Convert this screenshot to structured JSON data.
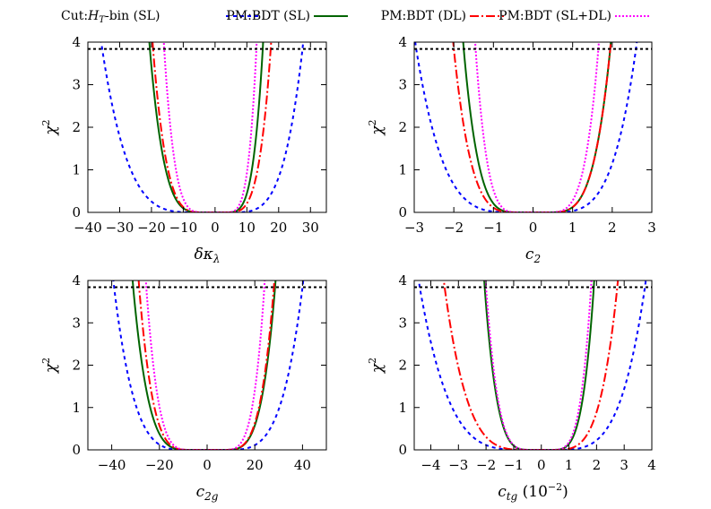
{
  "legend": [
    {
      "label": "Cut:",
      "label_math": "H",
      "label_sub": "T",
      "label_rest": "-bin (SL)",
      "color": "#0000ff",
      "style": "dotted"
    },
    {
      "label": "PM:BDT (SL)",
      "color": "#006400",
      "style": "solid"
    },
    {
      "label": "PM:BDT (DL)",
      "color": "#ff0000",
      "style": "dashdot"
    },
    {
      "label": "PM:BDT (SL+DL)",
      "color": "#ff00ff",
      "style": "finedotted"
    }
  ],
  "chart_data": [
    {
      "type": "line",
      "xlabel_main": "δκ",
      "xlabel_sub": "λ",
      "xlabel_suffix": "",
      "ylabel": "χ",
      "ylabel_sup": "2",
      "xlim": [
        -40,
        35
      ],
      "ylim": [
        0,
        4
      ],
      "xticks": [
        "−40",
        "−30",
        "−20",
        "−10",
        "0",
        "10",
        "20",
        "30"
      ],
      "xtick_values": [
        -40,
        -30,
        -20,
        -10,
        0,
        10,
        20,
        30
      ],
      "yticks": [
        "0",
        "1",
        "2",
        "3",
        "4"
      ],
      "threshold": 3.84,
      "series": [
        {
          "name": "Cut:HT-bin (SL)",
          "style": "dotted",
          "color": "#0000ff",
          "chi2_at_3p84": [
            -35.5,
            27.5
          ],
          "flat_halfwidth": 4
        },
        {
          "name": "PM:BDT (SL)",
          "style": "solid",
          "color": "#006400",
          "chi2_at_3p84": [
            -20.5,
            15.0
          ],
          "flat_halfwidth": 3
        },
        {
          "name": "PM:BDT (DL)",
          "style": "dashdot",
          "color": "#ff0000",
          "chi2_at_3p84": [
            -19.5,
            17.5
          ],
          "flat_halfwidth": 3
        },
        {
          "name": "PM:BDT (SL+DL)",
          "style": "finedotted",
          "color": "#ff00ff",
          "chi2_at_3p84": [
            -16.0,
            13.0
          ],
          "flat_halfwidth": 3
        }
      ]
    },
    {
      "type": "line",
      "xlabel_main": "c",
      "xlabel_sub": "2",
      "xlabel_suffix": "",
      "ylabel": "χ",
      "ylabel_sup": "2",
      "xlim": [
        -3,
        3
      ],
      "ylim": [
        0,
        4
      ],
      "xticks": [
        "−3",
        "−2",
        "−1",
        "0",
        "1",
        "2",
        "3"
      ],
      "xtick_values": [
        -3,
        -2,
        -1,
        0,
        1,
        2,
        3
      ],
      "yticks": [
        "0",
        "1",
        "2",
        "3",
        "4"
      ],
      "threshold": 3.84,
      "series": [
        {
          "name": "Cut:HT-bin (SL)",
          "style": "dotted",
          "color": "#0000ff",
          "chi2_at_3p84": [
            -2.95,
            2.6
          ],
          "flat_halfwidth": 0.3
        },
        {
          "name": "PM:BDT (SL)",
          "style": "solid",
          "color": "#006400",
          "chi2_at_3p84": [
            -1.75,
            1.95
          ],
          "flat_halfwidth": 0.3
        },
        {
          "name": "PM:BDT (DL)",
          "style": "dashdot",
          "color": "#ff0000",
          "chi2_at_3p84": [
            -2.0,
            1.95
          ],
          "flat_halfwidth": 0.3
        },
        {
          "name": "PM:BDT (SL+DL)",
          "style": "finedotted",
          "color": "#ff00ff",
          "chi2_at_3p84": [
            -1.45,
            1.65
          ],
          "flat_halfwidth": 0.3
        }
      ]
    },
    {
      "type": "line",
      "xlabel_main": "c",
      "xlabel_sub": "2g",
      "xlabel_suffix": "",
      "ylabel": "χ",
      "ylabel_sup": "2",
      "xlim": [
        -50,
        50
      ],
      "ylim": [
        0,
        4
      ],
      "xticks": [
        "−40",
        "−20",
        "0",
        "20",
        "40"
      ],
      "xtick_values": [
        -40,
        -20,
        0,
        20,
        40
      ],
      "yticks": [
        "0",
        "1",
        "2",
        "3",
        "4"
      ],
      "threshold": 3.84,
      "series": [
        {
          "name": "Cut:HT-bin (SL)",
          "style": "dotted",
          "color": "#0000ff",
          "chi2_at_3p84": [
            -39.0,
            40.0
          ],
          "flat_halfwidth": 6
        },
        {
          "name": "PM:BDT (SL)",
          "style": "solid",
          "color": "#006400",
          "chi2_at_3p84": [
            -31.0,
            28.5
          ],
          "flat_halfwidth": 6
        },
        {
          "name": "PM:BDT (DL)",
          "style": "dashdot",
          "color": "#ff0000",
          "chi2_at_3p84": [
            -28.5,
            28.0
          ],
          "flat_halfwidth": 6
        },
        {
          "name": "PM:BDT (SL+DL)",
          "style": "finedotted",
          "color": "#ff00ff",
          "chi2_at_3p84": [
            -25.5,
            24.0
          ],
          "flat_halfwidth": 6
        }
      ]
    },
    {
      "type": "line",
      "xlabel_main": "c",
      "xlabel_sub": "tg",
      "xlabel_suffix": " (10",
      "xlabel_sup": "−2",
      "xlabel_close": ")",
      "ylabel": "χ",
      "ylabel_sup": "2",
      "xlim": [
        -4.6,
        4
      ],
      "ylim": [
        0,
        4
      ],
      "xticks": [
        "−4",
        "−3",
        "−2",
        "−1",
        "0",
        "1",
        "2",
        "3",
        "4"
      ],
      "xtick_values": [
        -4,
        -3,
        -2,
        -1,
        0,
        1,
        2,
        3,
        4
      ],
      "yticks": [
        "0",
        "1",
        "2",
        "3",
        "4"
      ],
      "threshold": 3.84,
      "series": [
        {
          "name": "Cut:HT-bin (SL)",
          "style": "dotted",
          "color": "#0000ff",
          "chi2_at_3p84": [
            -4.4,
            3.75
          ],
          "flat_halfwidth": 0.3
        },
        {
          "name": "PM:BDT (SL)",
          "style": "solid",
          "color": "#006400",
          "chi2_at_3p84": [
            -2.05,
            1.9
          ],
          "flat_halfwidth": 0.3
        },
        {
          "name": "PM:BDT (DL)",
          "style": "dashdot",
          "color": "#ff0000",
          "chi2_at_3p84": [
            -3.5,
            2.75
          ],
          "flat_halfwidth": 0.3
        },
        {
          "name": "PM:BDT (SL+DL)",
          "style": "finedotted",
          "color": "#ff00ff",
          "chi2_at_3p84": [
            -2.0,
            1.8
          ],
          "flat_halfwidth": 0.3
        }
      ]
    }
  ]
}
